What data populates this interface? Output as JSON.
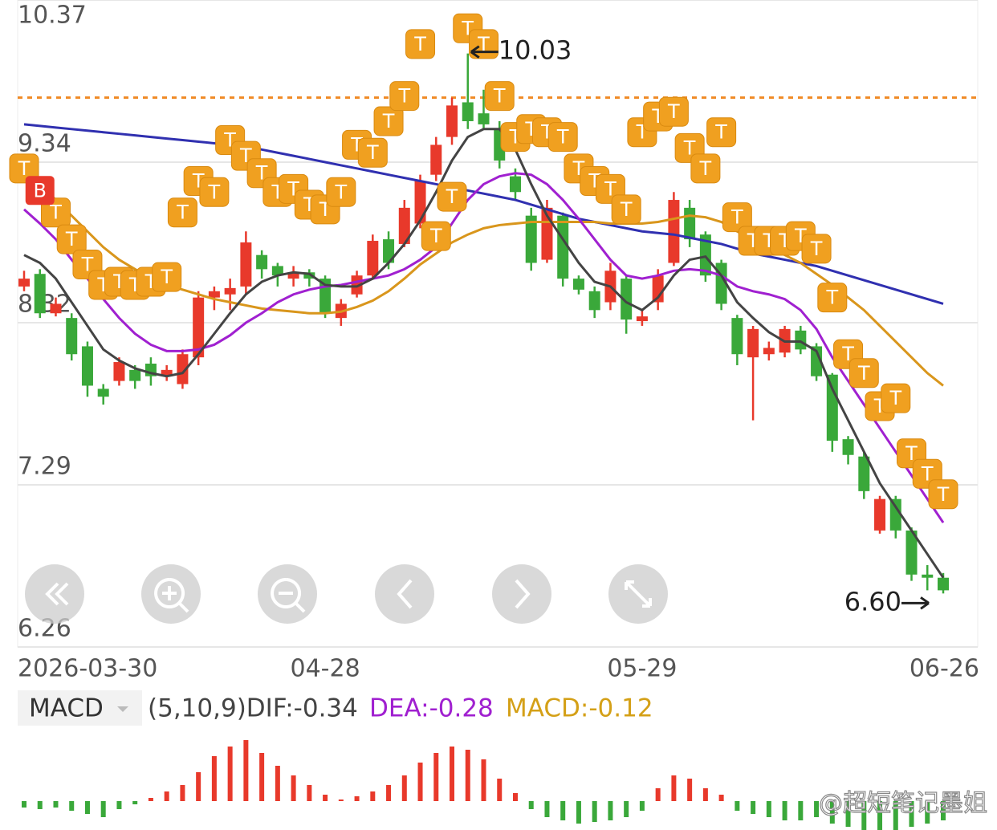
{
  "chart_data": {
    "type": "candlestick",
    "categories": [
      "2026-03-30",
      null,
      null,
      null,
      null,
      null,
      null,
      null,
      null,
      null,
      null,
      null,
      null,
      null,
      null,
      null,
      null,
      null,
      null,
      "04-28",
      null,
      null,
      null,
      null,
      null,
      null,
      null,
      null,
      null,
      null,
      null,
      null,
      null,
      null,
      null,
      null,
      null,
      null,
      null,
      "05-29",
      null,
      null,
      null,
      null,
      null,
      null,
      null,
      null,
      null,
      null,
      null,
      null,
      null,
      null,
      null,
      null,
      null,
      null,
      "06-26"
    ],
    "open": [
      8.55,
      8.63,
      8.38,
      8.35,
      8.17,
      7.9,
      7.95,
      8.02,
      8.06,
      7.98,
      7.93,
      8.1,
      8.48,
      8.5,
      8.55,
      8.75,
      8.68,
      8.6,
      8.64,
      8.6,
      8.35,
      8.5,
      8.62,
      8.85,
      8.82,
      8.95,
      9.26,
      9.5,
      9.72,
      9.65,
      9.55,
      9.25,
      9.0,
      8.72,
      9.0,
      8.6,
      8.52,
      8.45,
      8.6,
      8.33,
      8.45,
      8.7,
      9.05,
      8.88,
      8.7,
      8.35,
      8.1,
      8.12,
      8.13,
      8.27,
      8.17,
      7.99,
      7.58,
      7.47,
      7.0,
      7.2,
      7.0,
      6.72,
      6.7
    ],
    "close": [
      8.6,
      8.38,
      8.44,
      8.12,
      7.92,
      7.85,
      8.07,
      7.95,
      7.98,
      8.02,
      8.12,
      8.48,
      8.52,
      8.54,
      8.83,
      8.66,
      8.62,
      8.64,
      8.6,
      8.38,
      8.44,
      8.62,
      8.84,
      8.7,
      9.05,
      9.22,
      9.45,
      9.7,
      9.6,
      9.58,
      9.35,
      9.15,
      8.7,
      9.05,
      8.6,
      8.53,
      8.4,
      8.65,
      8.34,
      8.36,
      8.62,
      9.1,
      8.85,
      8.62,
      8.44,
      8.12,
      8.28,
      8.16,
      8.28,
      8.15,
      7.98,
      7.57,
      7.48,
      7.25,
      7.2,
      7.0,
      6.72,
      6.7,
      6.62
    ],
    "high": [
      8.65,
      8.66,
      8.48,
      8.38,
      8.2,
      7.93,
      8.1,
      8.05,
      8.1,
      8.05,
      8.15,
      8.52,
      8.55,
      8.6,
      8.9,
      8.78,
      8.7,
      8.68,
      8.66,
      8.62,
      8.47,
      8.65,
      8.88,
      8.9,
      9.1,
      9.26,
      9.5,
      9.75,
      10.03,
      9.8,
      9.6,
      9.3,
      9.05,
      9.1,
      9.02,
      8.62,
      8.55,
      8.7,
      8.62,
      8.4,
      8.66,
      9.15,
      9.1,
      8.9,
      8.72,
      8.37,
      8.3,
      8.2,
      8.3,
      8.3,
      8.19,
      8.0,
      7.6,
      7.5,
      7.22,
      7.22,
      7.02,
      6.78,
      6.73
    ],
    "low": [
      8.52,
      8.35,
      8.36,
      8.08,
      7.85,
      7.8,
      7.92,
      7.9,
      7.92,
      7.95,
      7.9,
      8.05,
      8.4,
      8.4,
      8.5,
      8.6,
      8.55,
      8.55,
      8.55,
      8.35,
      8.3,
      8.48,
      8.6,
      8.66,
      8.8,
      8.92,
      9.22,
      9.45,
      9.55,
      9.55,
      9.3,
      9.1,
      8.65,
      8.7,
      8.55,
      8.5,
      8.35,
      8.4,
      8.25,
      8.3,
      8.4,
      8.68,
      8.8,
      8.58,
      8.4,
      8.05,
      7.7,
      8.08,
      8.1,
      8.12,
      7.95,
      7.5,
      7.42,
      7.2,
      6.98,
      6.95,
      6.68,
      6.62,
      6.6
    ],
    "up_color": "#e8392b",
    "down_color": "#3aa83a",
    "ylim": [
      6.26,
      10.37
    ],
    "yticks": [
      10.37,
      9.34,
      8.32,
      7.29,
      6.26
    ],
    "grid": true,
    "ref_line": {
      "value": 9.75,
      "color": "#f08a24"
    },
    "ma_lines": [
      {
        "color": "#3030b0",
        "values": [
          9.58,
          9.57,
          9.56,
          9.55,
          9.54,
          9.53,
          9.52,
          9.51,
          9.5,
          9.49,
          9.48,
          9.47,
          9.46,
          9.45,
          9.44,
          9.42,
          9.4,
          9.38,
          9.36,
          9.34,
          9.32,
          9.3,
          9.28,
          9.26,
          9.24,
          9.22,
          9.2,
          9.18,
          9.16,
          9.14,
          9.12,
          9.1,
          9.07,
          9.04,
          9.01,
          8.98,
          8.96,
          8.94,
          8.92,
          8.9,
          8.89,
          8.88,
          8.86,
          8.84,
          8.82,
          8.79,
          8.76,
          8.74,
          8.72,
          8.7,
          8.68,
          8.65,
          8.62,
          8.59,
          8.56,
          8.53,
          8.5,
          8.47,
          8.44
        ]
      },
      {
        "color": "#d9961c",
        "values": [
          9.27,
          9.2,
          9.1,
          9.0,
          8.9,
          8.8,
          8.72,
          8.66,
          8.6,
          8.56,
          8.53,
          8.5,
          8.47,
          8.45,
          8.43,
          8.41,
          8.4,
          8.39,
          8.38,
          8.38,
          8.39,
          8.42,
          8.46,
          8.52,
          8.6,
          8.69,
          8.76,
          8.83,
          8.88,
          8.92,
          8.94,
          8.95,
          8.96,
          8.96,
          8.96,
          8.96,
          8.96,
          8.95,
          8.95,
          8.95,
          8.96,
          8.98,
          9.0,
          8.99,
          8.96,
          8.9,
          8.85,
          8.8,
          8.75,
          8.7,
          8.63,
          8.56,
          8.48,
          8.4,
          8.3,
          8.2,
          8.1,
          8.0,
          7.92
        ]
      },
      {
        "color": "#a020d0",
        "values": [
          9.04,
          8.95,
          8.85,
          8.72,
          8.6,
          8.47,
          8.35,
          8.25,
          8.18,
          8.14,
          8.14,
          8.15,
          8.18,
          8.24,
          8.32,
          8.38,
          8.45,
          8.5,
          8.53,
          8.55,
          8.56,
          8.58,
          8.6,
          8.62,
          8.66,
          8.72,
          8.8,
          8.95,
          9.1,
          9.2,
          9.25,
          9.27,
          9.26,
          9.2,
          9.1,
          8.98,
          8.85,
          8.72,
          8.62,
          8.6,
          8.62,
          8.65,
          8.66,
          8.65,
          8.62,
          8.55,
          8.52,
          8.5,
          8.47,
          8.4,
          8.28,
          8.1,
          7.95,
          7.8,
          7.65,
          7.5,
          7.35,
          7.2,
          7.05
        ]
      },
      {
        "color": "#444444",
        "values": [
          8.75,
          8.7,
          8.6,
          8.45,
          8.3,
          8.15,
          8.08,
          8.03,
          8.0,
          7.98,
          8.0,
          8.12,
          8.25,
          8.38,
          8.5,
          8.58,
          8.62,
          8.64,
          8.63,
          8.56,
          8.55,
          8.55,
          8.6,
          8.7,
          8.82,
          8.97,
          9.15,
          9.35,
          9.5,
          9.55,
          9.55,
          9.42,
          9.2,
          9.0,
          8.85,
          8.7,
          8.58,
          8.55,
          8.45,
          8.4,
          8.48,
          8.62,
          8.72,
          8.74,
          8.62,
          8.45,
          8.35,
          8.26,
          8.2,
          8.2,
          8.14,
          7.9,
          7.7,
          7.5,
          7.3,
          7.15,
          7.0,
          6.85,
          6.7
        ]
      }
    ],
    "t_markers": {
      "label": "T",
      "color": "#f0a020",
      "values": [
        9.3,
        null,
        9.02,
        8.85,
        8.69,
        8.56,
        8.58,
        8.56,
        8.58,
        8.61,
        9.02,
        9.22,
        9.15,
        9.48,
        9.38,
        9.27,
        9.15,
        9.17,
        9.07,
        9.04,
        9.15,
        9.45,
        9.4,
        9.6,
        9.76,
        10.09,
        8.87,
        9.12,
        10.19,
        10.09,
        9.76,
        9.5,
        9.55,
        9.53,
        9.5,
        9.3,
        9.22,
        9.17,
        9.04,
        9.53,
        9.63,
        9.66,
        9.43,
        9.3,
        9.53,
        8.99,
        8.84,
        8.84,
        8.84,
        8.87,
        8.79,
        8.48,
        8.12,
        8.0,
        7.79,
        7.84,
        7.49,
        7.36,
        7.23
      ]
    },
    "b_marker": {
      "label": "B",
      "color": "#e8392b",
      "index": 1,
      "value": 9.16
    },
    "max_label": "10.03",
    "min_label": "6.60",
    "macd": {
      "label": "MACD",
      "params": "(5,10,9)DIF:-0.34",
      "dea": "DEA:-0.28",
      "macd": "MACD:-0.12",
      "ylim": [
        -0.18,
        0.465
      ],
      "histogram": [
        -0.04,
        -0.05,
        -0.04,
        -0.06,
        -0.08,
        -0.1,
        -0.05,
        -0.02,
        0.02,
        0.06,
        0.1,
        0.18,
        0.28,
        0.34,
        0.38,
        0.3,
        0.22,
        0.16,
        0.1,
        0.04,
        0.01,
        0.03,
        0.06,
        0.1,
        0.16,
        0.24,
        0.3,
        0.34,
        0.32,
        0.26,
        0.14,
        0.05,
        -0.05,
        -0.1,
        -0.12,
        -0.14,
        -0.13,
        -0.12,
        -0.1,
        -0.06,
        0.08,
        0.16,
        0.14,
        0.08,
        0.04,
        -0.06,
        -0.08,
        -0.1,
        -0.12,
        -0.12,
        -0.1,
        -0.14,
        -0.16,
        -0.18,
        -0.2,
        -0.18,
        -0.16,
        -0.14,
        -0.12
      ]
    },
    "watermark": "@超短笔记墨姐"
  }
}
